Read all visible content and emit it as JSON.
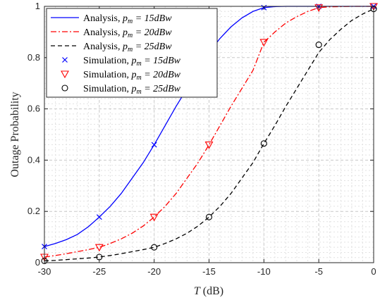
{
  "chart_data": {
    "type": "line",
    "xlabel": "T (dB)",
    "ylabel": "Outage Probability",
    "xlim": [
      -30,
      0
    ],
    "ylim": [
      0,
      1
    ],
    "xticks": [
      -30,
      -25,
      -20,
      -15,
      -10,
      -5,
      0
    ],
    "yticks": [
      0,
      0.2,
      0.4,
      0.6,
      0.8,
      1
    ],
    "grid": "major and minor, dashed",
    "legend_position": "top-left",
    "series": [
      {
        "name": "Analysis, p_m = 15dBw",
        "kind": "line",
        "color": "#0000ff",
        "dash": "solid",
        "x": [
          -30,
          -29,
          -28,
          -27,
          -26,
          -25,
          -24,
          -23,
          -22,
          -21,
          -20,
          -19,
          -18,
          -17,
          -16,
          -15,
          -14,
          -13,
          -12,
          -11,
          -10,
          -9,
          -8,
          -7,
          -6,
          -5,
          -4,
          -3,
          -2,
          -1,
          0
        ],
        "y": [
          0.063,
          0.075,
          0.09,
          0.11,
          0.14,
          0.178,
          0.22,
          0.27,
          0.33,
          0.39,
          0.46,
          0.535,
          0.61,
          0.68,
          0.75,
          0.82,
          0.875,
          0.92,
          0.955,
          0.98,
          0.995,
          0.999,
          1.0,
          1.0,
          1.0,
          1.0,
          1.0,
          1.0,
          1.0,
          1.0,
          1.0
        ]
      },
      {
        "name": "Analysis, p_m = 20dBw",
        "kind": "line",
        "color": "#ff0000",
        "dash": "dashdot",
        "x": [
          -30,
          -29,
          -28,
          -27,
          -26,
          -25,
          -24,
          -23,
          -22,
          -21,
          -20,
          -19,
          -18,
          -17,
          -16,
          -15,
          -14,
          -13,
          -12,
          -11,
          -10,
          -9,
          -8,
          -7,
          -6,
          -5,
          -4,
          -3,
          -2,
          -1,
          0
        ],
        "y": [
          0.022,
          0.028,
          0.035,
          0.043,
          0.051,
          0.06,
          0.075,
          0.093,
          0.115,
          0.143,
          0.178,
          0.22,
          0.27,
          0.33,
          0.39,
          0.46,
          0.535,
          0.61,
          0.68,
          0.75,
          0.86,
          0.9,
          0.935,
          0.96,
          0.98,
          0.995,
          0.998,
          0.999,
          1.0,
          1.0,
          1.0
        ]
      },
      {
        "name": "Analysis, p_m = 25dBw",
        "kind": "line",
        "color": "#000000",
        "dash": "dashed",
        "x": [
          -30,
          -29,
          -28,
          -27,
          -26,
          -25,
          -24,
          -23,
          -22,
          -21,
          -20,
          -19,
          -18,
          -17,
          -16,
          -15,
          -14,
          -13,
          -12,
          -11,
          -10,
          -9,
          -8,
          -7,
          -6,
          -5,
          -4,
          -3,
          -2,
          -1,
          0
        ],
        "y": [
          0.007,
          0.009,
          0.012,
          0.015,
          0.018,
          0.022,
          0.028,
          0.035,
          0.043,
          0.051,
          0.06,
          0.075,
          0.093,
          0.115,
          0.143,
          0.178,
          0.22,
          0.27,
          0.33,
          0.39,
          0.465,
          0.535,
          0.61,
          0.68,
          0.75,
          0.82,
          0.87,
          0.91,
          0.945,
          0.97,
          0.99
        ]
      },
      {
        "name": "Simulation, p_m = 15dBw",
        "kind": "marker",
        "marker": "x",
        "color": "#0000ff",
        "x": [
          -30,
          -25,
          -20,
          -15,
          -10,
          -5,
          0
        ],
        "y": [
          0.063,
          0.178,
          0.46,
          0.82,
          0.995,
          1.0,
          1.0
        ]
      },
      {
        "name": "Simulation, p_m = 20dBw",
        "kind": "marker",
        "marker": "triangle-down",
        "color": "#ff0000",
        "x": [
          -30,
          -25,
          -20,
          -15,
          -10,
          -5,
          0
        ],
        "y": [
          0.022,
          0.06,
          0.178,
          0.46,
          0.86,
          0.995,
          1.0
        ]
      },
      {
        "name": "Simulation, p_m = 25dBw",
        "kind": "marker",
        "marker": "circle",
        "color": "#000000",
        "x": [
          -30,
          -25,
          -20,
          -15,
          -10,
          -5,
          0
        ],
        "y": [
          0.007,
          0.022,
          0.06,
          0.178,
          0.465,
          0.85,
          0.99
        ]
      }
    ],
    "legend": [
      {
        "prefix": "Analysis, ",
        "var": "p",
        "sub": "m",
        "value": " = 15dBw"
      },
      {
        "prefix": "Analysis, ",
        "var": "p",
        "sub": "m",
        "value": " = 20dBw"
      },
      {
        "prefix": "Analysis, ",
        "var": "p",
        "sub": "m",
        "value": " = 25dBw"
      },
      {
        "prefix": "Simulation, ",
        "var": "p",
        "sub": "m",
        "value": " = 15dBw"
      },
      {
        "prefix": "Simulation, ",
        "var": "p",
        "sub": "m",
        "value": " = 20dBw"
      },
      {
        "prefix": "Simulation, ",
        "var": "p",
        "sub": "m",
        "value": " = 25dBw"
      }
    ]
  }
}
